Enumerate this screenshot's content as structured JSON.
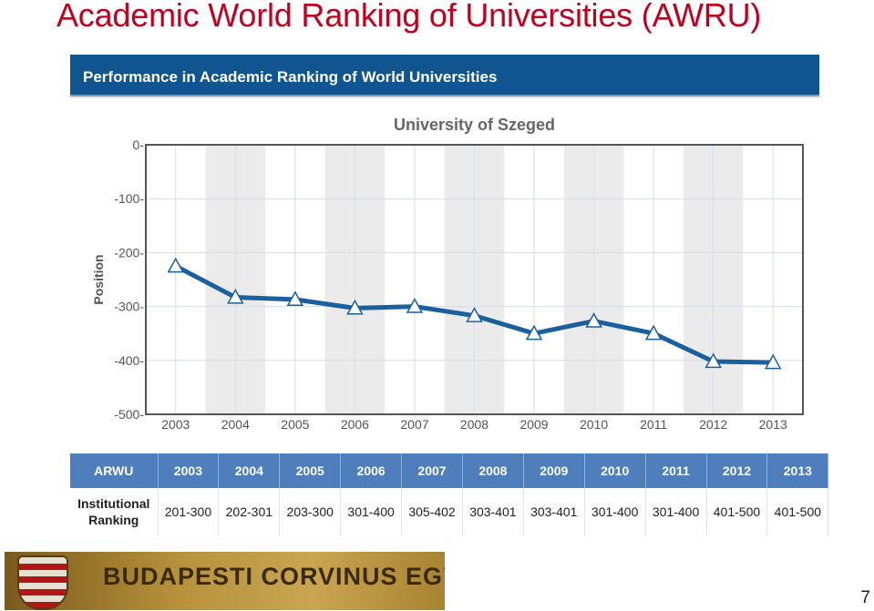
{
  "slide": {
    "title": "Academic World Ranking of Universities (AWRU)",
    "page_number": "7"
  },
  "panel": {
    "header": "Performance in Academic Ranking of World Universities"
  },
  "chart_data": {
    "type": "line",
    "title": "University of Szeged",
    "ylabel": "Position",
    "xlabel": "",
    "x": [
      "2003",
      "2004",
      "2005",
      "2006",
      "2007",
      "2008",
      "2009",
      "2010",
      "2011",
      "2012",
      "2013"
    ],
    "series": [
      {
        "values": [
          -225,
          -283,
          -287,
          -303,
          -300,
          -317,
          -350,
          -327,
          -350,
          -402,
          -404
        ]
      }
    ],
    "ylim": [
      -500,
      0
    ],
    "yticks": [
      0,
      -100,
      -200,
      -300,
      -400,
      -500
    ],
    "ytick_labels": [
      "0-",
      "-100-",
      "-200-",
      "-300-",
      "-400-",
      "-500-"
    ],
    "colors": {
      "line": "#1a5f9e",
      "marker_fill": "#ffffff",
      "marker_stroke": "#1a5f9e",
      "alt_band": "#ebebeb"
    },
    "grid": true,
    "marker": "triangle"
  },
  "table": {
    "header": [
      "ARWU",
      "2003",
      "2004",
      "2005",
      "2006",
      "2007",
      "2008",
      "2009",
      "2010",
      "2011",
      "2012",
      "2013"
    ],
    "row_label": "Institutional Ranking",
    "row": [
      "201-300",
      "202-301",
      "203-300",
      "301-400",
      "305-402",
      "303-401",
      "303-401",
      "301-400",
      "301-400",
      "401-500",
      "401-500"
    ]
  },
  "banner": {
    "text": "BUDAPESTI CORVINUS EGYETEM"
  }
}
